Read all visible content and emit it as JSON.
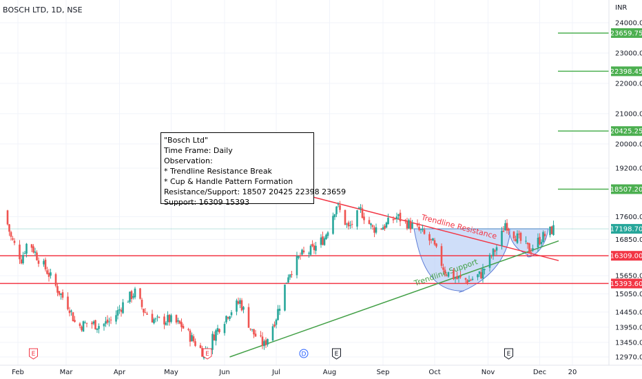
{
  "header": {
    "ticker": "BOSCH LTD, 1D, NSE",
    "currency": "INR"
  },
  "colors": {
    "up": "#26a69a",
    "down": "#ef5350",
    "resistance": "#f23645",
    "support": "#43a047",
    "level_line": "#4caf50",
    "cup_fill": "#bbd0f7"
  },
  "note": {
    "lines": [
      "\"Bosch Ltd\"",
      "Time Frame: Daily",
      "Observation:",
      "* Trendline Resistance Break",
      "* Cup & Handle Pattern Formation",
      "Resistance/Support: 18507 20425 22398 23659",
      "Support: 16309 15393"
    ]
  },
  "chart_data": {
    "type": "candlestick",
    "title": "BOSCH LTD, 1D, NSE",
    "ylabel": "INR",
    "ylim": [
      12900,
      24300
    ],
    "y_ticks": [
      "24000.00",
      "23000.00",
      "22000.00",
      "21000.00",
      "20000.00",
      "19200.00",
      "17600.00",
      "16850.00",
      "15650.00",
      "15050.00",
      "14450.00",
      "13950.00",
      "13450.00",
      "12970.00"
    ],
    "x_ticks": [
      "Feb",
      "Mar",
      "Apr",
      "May",
      "Jun",
      "Jul",
      "Aug",
      "Sep",
      "Oct",
      "Nov",
      "Dec",
      "20"
    ],
    "last_price": "17198.70",
    "levels": [
      {
        "value": 23659.75,
        "label": "23659.75",
        "color": "green"
      },
      {
        "value": 22398.45,
        "label": "22398.45",
        "color": "green"
      },
      {
        "value": 20425.25,
        "label": "20425.25",
        "color": "green"
      },
      {
        "value": 18507.2,
        "label": "18507.20",
        "color": "green"
      },
      {
        "value": 16309.0,
        "label": "16309.00",
        "color": "red"
      },
      {
        "value": 15393.6,
        "label": "15393.60",
        "color": "red"
      }
    ],
    "trendlines": [
      {
        "name": "Trendline Resistance",
        "from": [
          "Jul 12",
          18400
        ],
        "to": [
          "Dec 12",
          16150
        ]
      },
      {
        "name": "Trendline Support",
        "from": [
          "Jun 4",
          12970
        ],
        "to": [
          "Dec 12",
          16800
        ]
      }
    ],
    "events": [
      {
        "date": "Feb 10",
        "symbol": "E"
      },
      {
        "date": "May 22",
        "symbol": "E"
      },
      {
        "date": "Jul 17",
        "symbol": "D"
      },
      {
        "date": "Aug 5",
        "symbol": "E"
      },
      {
        "date": "Nov 13",
        "symbol": "E"
      }
    ],
    "close_path": [
      [
        "Jan 24",
        17800
      ],
      [
        "Jan 28",
        16900
      ],
      [
        "Feb 3",
        16200
      ],
      [
        "Feb 7",
        16850
      ],
      [
        "Feb 12",
        16300
      ],
      [
        "Feb 18",
        15800
      ],
      [
        "Feb 24",
        15200
      ],
      [
        "Mar 3",
        14600
      ],
      [
        "Mar 7",
        13950
      ],
      [
        "Mar 14",
        14100
      ],
      [
        "Mar 21",
        14000
      ],
      [
        "Mar 28",
        14200
      ],
      [
        "Apr 4",
        14800
      ],
      [
        "Apr 10",
        15100
      ],
      [
        "Apr 15",
        14500
      ],
      [
        "Apr 22",
        14150
      ],
      [
        "Apr 30",
        14200
      ],
      [
        "May 7",
        14000
      ],
      [
        "May 14",
        13500
      ],
      [
        "May 20",
        13100
      ],
      [
        "May 27",
        13800
      ],
      [
        "Jun 3",
        14400
      ],
      [
        "Jun 10",
        14800
      ],
      [
        "Jun 17",
        13800
      ],
      [
        "Jun 24",
        13350
      ],
      [
        "Jul 1",
        14300
      ],
      [
        "Jul 8",
        15700
      ],
      [
        "Jul 15",
        16300
      ],
      [
        "Jul 22",
        16500
      ],
      [
        "Jul 29",
        16900
      ],
      [
        "Aug 5",
        18000
      ],
      [
        "Aug 12",
        17200
      ],
      [
        "Aug 19",
        17800
      ],
      [
        "Aug 26",
        17200
      ],
      [
        "Sep 2",
        17300
      ],
      [
        "Sep 9",
        17600
      ],
      [
        "Sep 16",
        17350
      ],
      [
        "Sep 23",
        17100
      ],
      [
        "Sep 30",
        16700
      ],
      [
        "Oct 7",
        15800
      ],
      [
        "Oct 14",
        15550
      ],
      [
        "Oct 21",
        15500
      ],
      [
        "Oct 28",
        15700
      ],
      [
        "Nov 4",
        16400
      ],
      [
        "Nov 8",
        16800
      ],
      [
        "Nov 11",
        17400
      ],
      [
        "Nov 18",
        16900
      ],
      [
        "Nov 25",
        16500
      ],
      [
        "Dec 2",
        16900
      ],
      [
        "Dec 9",
        17198.7
      ]
    ]
  }
}
